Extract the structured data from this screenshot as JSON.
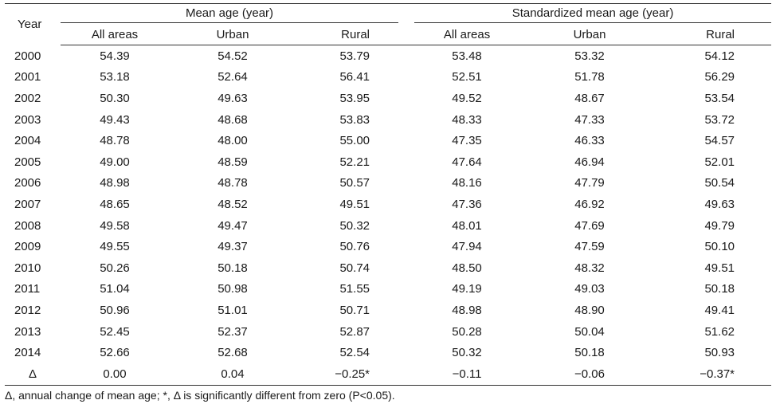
{
  "table": {
    "year_header": "Year",
    "group_mean": "Mean age (year)",
    "group_std": "Standardized mean age (year)",
    "subheaders": [
      "All areas",
      "Urban",
      "Rural",
      "All areas",
      "Urban",
      "Rural"
    ],
    "rows": [
      {
        "year": "2000",
        "values": [
          "54.39",
          "54.52",
          "53.79",
          "53.48",
          "53.32",
          "54.12"
        ]
      },
      {
        "year": "2001",
        "values": [
          "53.18",
          "52.64",
          "56.41",
          "52.51",
          "51.78",
          "56.29"
        ]
      },
      {
        "year": "2002",
        "values": [
          "50.30",
          "49.63",
          "53.95",
          "49.52",
          "48.67",
          "53.54"
        ]
      },
      {
        "year": "2003",
        "values": [
          "49.43",
          "48.68",
          "53.83",
          "48.33",
          "47.33",
          "53.72"
        ]
      },
      {
        "year": "2004",
        "values": [
          "48.78",
          "48.00",
          "55.00",
          "47.35",
          "46.33",
          "54.57"
        ]
      },
      {
        "year": "2005",
        "values": [
          "49.00",
          "48.59",
          "52.21",
          "47.64",
          "46.94",
          "52.01"
        ]
      },
      {
        "year": "2006",
        "values": [
          "48.98",
          "48.78",
          "50.57",
          "48.16",
          "47.79",
          "50.54"
        ]
      },
      {
        "year": "2007",
        "values": [
          "48.65",
          "48.52",
          "49.51",
          "47.36",
          "46.92",
          "49.63"
        ]
      },
      {
        "year": "2008",
        "values": [
          "49.58",
          "49.47",
          "50.32",
          "48.01",
          "47.69",
          "49.79"
        ]
      },
      {
        "year": "2009",
        "values": [
          "49.55",
          "49.37",
          "50.76",
          "47.94",
          "47.59",
          "50.10"
        ]
      },
      {
        "year": "2010",
        "values": [
          "50.26",
          "50.18",
          "50.74",
          "48.50",
          "48.32",
          "49.51"
        ]
      },
      {
        "year": "2011",
        "values": [
          "51.04",
          "50.98",
          "51.55",
          "49.19",
          "49.03",
          "50.18"
        ]
      },
      {
        "year": "2012",
        "values": [
          "50.96",
          "51.01",
          "50.71",
          "48.98",
          "48.90",
          "49.41"
        ]
      },
      {
        "year": "2013",
        "values": [
          "52.45",
          "52.37",
          "52.87",
          "50.28",
          "50.04",
          "51.62"
        ]
      },
      {
        "year": "2014",
        "values": [
          "52.66",
          "52.68",
          "52.54",
          "50.32",
          "50.18",
          "50.93"
        ]
      },
      {
        "year": "Δ",
        "values": [
          "0.00",
          "0.04",
          "−0.25*",
          "−0.11",
          "−0.06",
          "−0.37*"
        ]
      }
    ]
  },
  "footnote": "Δ, annual change of mean age; *, Δ is significantly different from zero (P<0.05)."
}
